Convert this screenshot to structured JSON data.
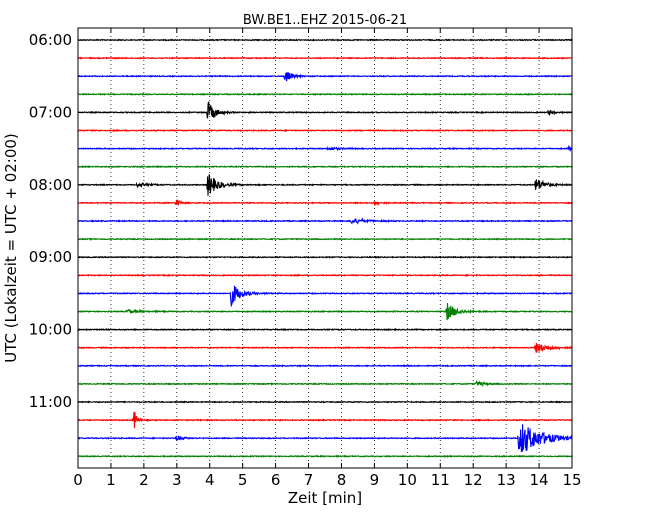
{
  "chart_data": {
    "type": "line",
    "title": "BW.BE1..EHZ 2015-06-21",
    "xlabel": "Zeit  [min]",
    "ylabel": "UTC (Lokalzeit = UTC + 02:00)",
    "xlim": [
      0,
      15
    ],
    "x_ticks": [
      "0",
      "1",
      "2",
      "3",
      "4",
      "5",
      "6",
      "7",
      "8",
      "9",
      "10",
      "11",
      "12",
      "13",
      "14",
      "15"
    ],
    "y_tick_labels": [
      "06:00",
      "07:00",
      "08:00",
      "09:00",
      "10:00",
      "11:00"
    ],
    "y_tick_traces": [
      0,
      4,
      8,
      12,
      16,
      20
    ],
    "grid": "vertical-dotted",
    "trace_interval_min": 15,
    "start_time": "06:00",
    "trace_colors": [
      "#000000",
      "#ff0000",
      "#0000ff",
      "#008000"
    ],
    "baseline_amp": 0.45,
    "events": [
      {
        "trace": 2,
        "t": 6.3,
        "amp": 7,
        "dur": 0.15
      },
      {
        "trace": 4,
        "t": 3.95,
        "amp": 11,
        "dur": 0.2
      },
      {
        "trace": 4,
        "t": 14.3,
        "amp": 3,
        "dur": 0.1
      },
      {
        "trace": 6,
        "t": 7.6,
        "amp": 1.5,
        "dur": 0.3
      },
      {
        "trace": 6,
        "t": 14.9,
        "amp": 2,
        "dur": 0.15
      },
      {
        "trace": 8,
        "t": 3.95,
        "amp": 12,
        "dur": 0.25
      },
      {
        "trace": 8,
        "t": 1.8,
        "amp": 2,
        "dur": 0.3
      },
      {
        "trace": 8,
        "t": 13.9,
        "amp": 7,
        "dur": 0.25
      },
      {
        "trace": 9,
        "t": 3.0,
        "amp": 4,
        "dur": 0.08
      },
      {
        "trace": 9,
        "t": 9.0,
        "amp": 2,
        "dur": 0.15
      },
      {
        "trace": 10,
        "t": 8.3,
        "amp": 3,
        "dur": 0.35
      },
      {
        "trace": 14,
        "t": 4.65,
        "amp": 12,
        "dur": 0.25
      },
      {
        "trace": 15,
        "t": 1.5,
        "amp": 2,
        "dur": 0.3
      },
      {
        "trace": 15,
        "t": 11.2,
        "amp": 9,
        "dur": 0.25
      },
      {
        "trace": 17,
        "t": 13.9,
        "amp": 5,
        "dur": 0.35
      },
      {
        "trace": 19,
        "t": 12.1,
        "amp": 2.5,
        "dur": 0.2
      },
      {
        "trace": 21,
        "t": 1.7,
        "amp": 11,
        "dur": 0.08
      },
      {
        "trace": 22,
        "t": 13.4,
        "amp": 18,
        "dur": 0.6
      },
      {
        "trace": 22,
        "t": 3.0,
        "amp": 2,
        "dur": 0.2
      }
    ]
  }
}
